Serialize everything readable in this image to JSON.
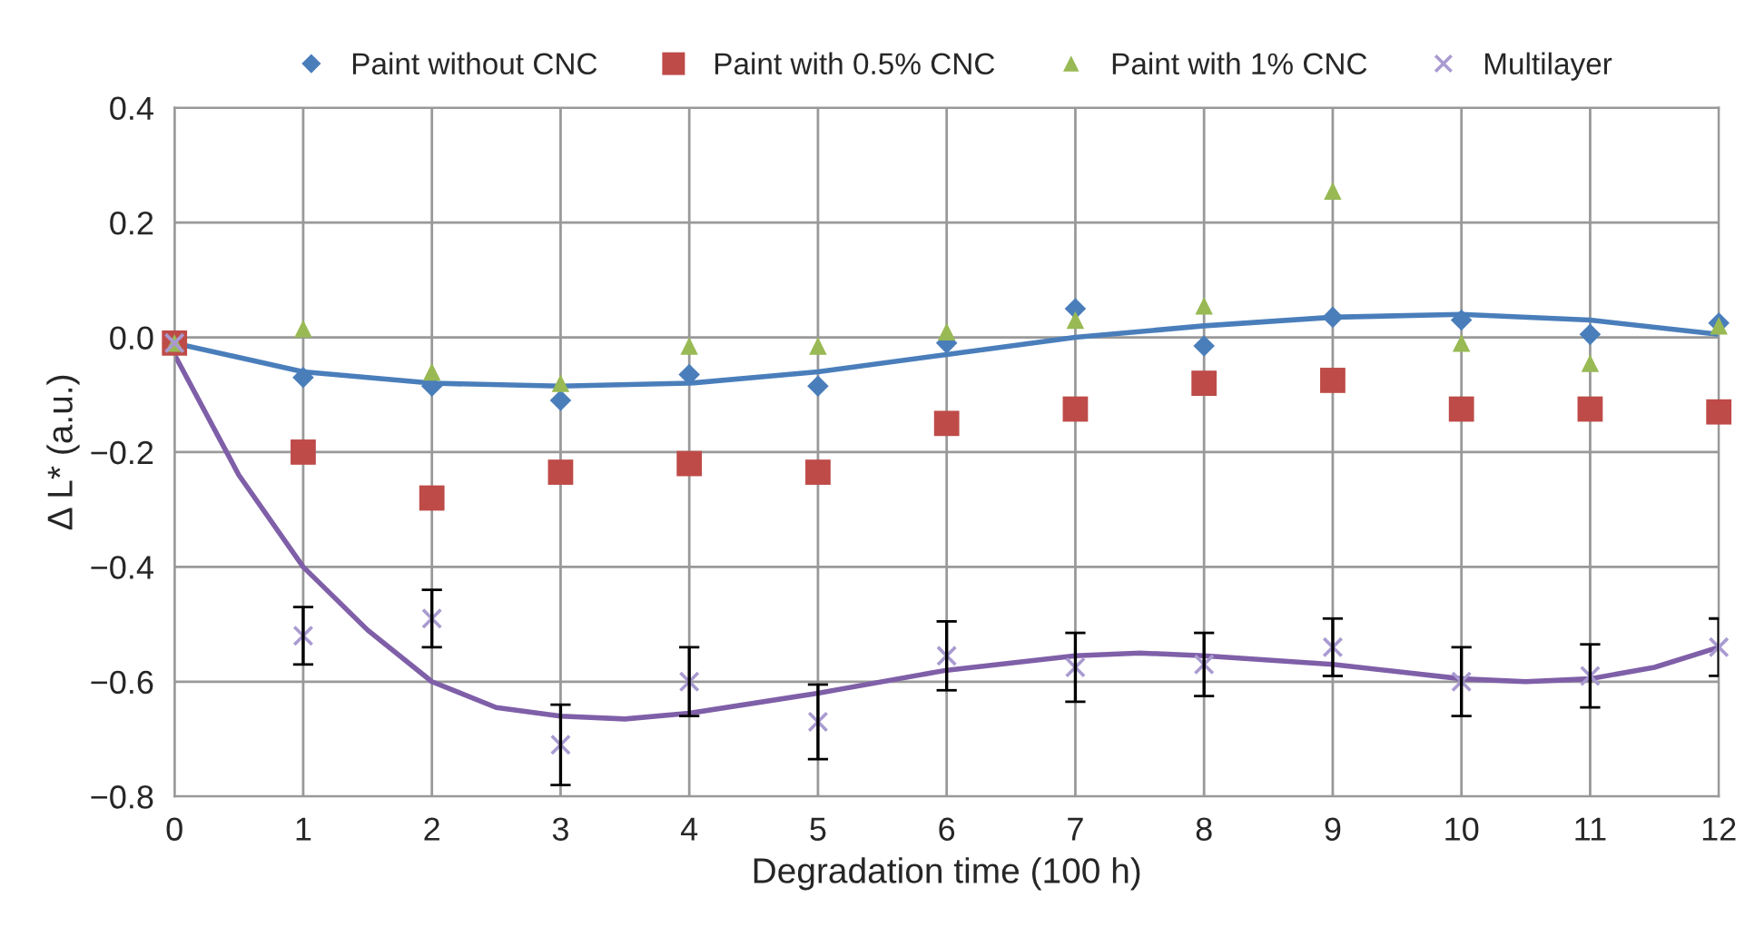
{
  "chart_data": {
    "type": "scatter",
    "xlabel": "Degradation time (100 h)",
    "ylabel": "Δ L* (a.u.)",
    "xlim": [
      0,
      12
    ],
    "xticks": [
      0,
      1,
      2,
      3,
      4,
      5,
      6,
      7,
      8,
      9,
      10,
      11,
      12
    ],
    "ylim": [
      -0.8,
      0.4
    ],
    "yticks": [
      {
        "value": -0.8,
        "label": "−0.8"
      },
      {
        "value": -0.6,
        "label": "−0.6"
      },
      {
        "value": -0.4,
        "label": "−0.4"
      },
      {
        "value": -0.2,
        "label": "−0.2"
      },
      {
        "value": 0,
        "label": "0.0"
      },
      {
        "value": 0.2,
        "label": "0.2"
      },
      {
        "value": 0.4,
        "label": "0.4"
      }
    ],
    "grid": true,
    "legend": "top",
    "x": [
      0,
      1,
      2,
      3,
      4,
      5,
      6,
      7,
      8,
      9,
      10,
      11,
      12
    ],
    "series": [
      {
        "name": "Paint without CNC",
        "color": "#4a7ebb",
        "marker": "diamond",
        "values": [
          null,
          -0.07,
          -0.085,
          -0.11,
          -0.065,
          -0.085,
          -0.01,
          0.05,
          -0.015,
          0.035,
          0.03,
          0.005,
          0.025
        ]
      },
      {
        "name": "Paint with 0.5% CNC",
        "color": "#be4b48",
        "marker": "square",
        "values": [
          -0.01,
          -0.2,
          -0.28,
          -0.235,
          -0.22,
          -0.235,
          -0.15,
          -0.125,
          -0.08,
          -0.075,
          -0.125,
          -0.125,
          -0.13
        ]
      },
      {
        "name": "Paint with 1% CNC",
        "color": "#98b954",
        "marker": "triangle",
        "values": [
          -0.01,
          0.015,
          -0.06,
          -0.08,
          -0.015,
          -0.015,
          0.01,
          0.03,
          0.055,
          0.255,
          -0.01,
          -0.045,
          0.02
        ]
      },
      {
        "name": "Multilayer",
        "color": "#a99bd1",
        "marker": "cross",
        "values": [
          -0.01,
          -0.52,
          -0.49,
          -0.71,
          -0.6,
          -0.67,
          -0.555,
          -0.575,
          -0.57,
          -0.54,
          -0.6,
          -0.59,
          -0.54
        ],
        "errors": [
          null,
          0.05,
          0.05,
          0.07,
          0.06,
          0.065,
          0.06,
          0.06,
          0.055,
          0.05,
          0.06,
          0.055,
          0.05
        ]
      },
      {
        "type": "line",
        "color": "#4a7ebb",
        "x": [
          0,
          1,
          2,
          3,
          4,
          5,
          6,
          7,
          8,
          9,
          10,
          11,
          12
        ],
        "values": [
          -0.01,
          -0.06,
          -0.08,
          -0.085,
          -0.08,
          -0.06,
          -0.03,
          0.0,
          0.02,
          0.035,
          0.04,
          0.03,
          0.005
        ]
      },
      {
        "type": "line",
        "color": "#7f5fa8",
        "x": [
          0,
          0.5,
          1,
          1.5,
          2,
          2.5,
          3,
          3.5,
          4,
          5,
          6,
          7,
          7.5,
          8,
          9,
          10,
          10.5,
          11,
          11.5,
          12
        ],
        "values": [
          -0.03,
          -0.24,
          -0.4,
          -0.51,
          -0.6,
          -0.645,
          -0.66,
          -0.665,
          -0.655,
          -0.62,
          -0.58,
          -0.555,
          -0.55,
          -0.555,
          -0.57,
          -0.595,
          -0.6,
          -0.595,
          -0.575,
          -0.54
        ]
      }
    ]
  }
}
